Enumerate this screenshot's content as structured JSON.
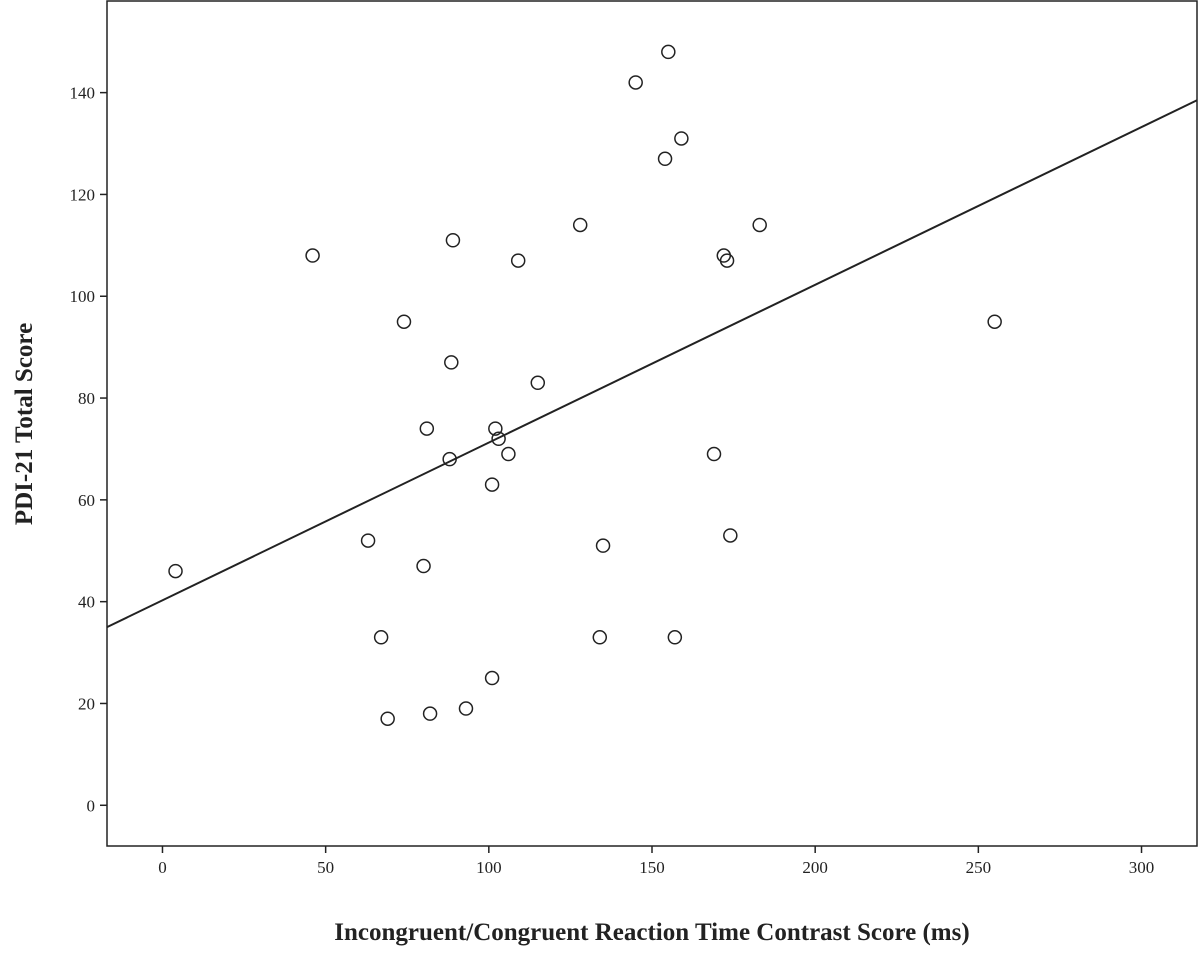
{
  "chart_data": {
    "type": "scatter",
    "title": "",
    "xlabel": "Incongruent/Congruent Reaction Time Contrast Score (ms)",
    "ylabel": "PDI-21 Total Score",
    "xlim": [
      -17,
      317
    ],
    "ylim": [
      -8,
      158
    ],
    "x_ticks": [
      0,
      50,
      100,
      150,
      200,
      250,
      300
    ],
    "y_ticks": [
      0,
      20,
      40,
      60,
      80,
      100,
      120,
      140
    ],
    "grid": false,
    "series": [
      {
        "values": [
          {
            "x": 4,
            "y": 46
          },
          {
            "x": 46,
            "y": 108
          },
          {
            "x": 63,
            "y": 52
          },
          {
            "x": 67,
            "y": 33
          },
          {
            "x": 69,
            "y": 17
          },
          {
            "x": 74,
            "y": 95
          },
          {
            "x": 80,
            "y": 47
          },
          {
            "x": 81,
            "y": 74
          },
          {
            "x": 82,
            "y": 18
          },
          {
            "x": 88,
            "y": 68
          },
          {
            "x": 88.5,
            "y": 87
          },
          {
            "x": 89,
            "y": 111
          },
          {
            "x": 93,
            "y": 19
          },
          {
            "x": 101,
            "y": 25
          },
          {
            "x": 101,
            "y": 63
          },
          {
            "x": 102,
            "y": 74
          },
          {
            "x": 103,
            "y": 72
          },
          {
            "x": 106,
            "y": 69
          },
          {
            "x": 109,
            "y": 107
          },
          {
            "x": 115,
            "y": 83
          },
          {
            "x": 128,
            "y": 114
          },
          {
            "x": 134,
            "y": 33
          },
          {
            "x": 135,
            "y": 51
          },
          {
            "x": 145,
            "y": 142
          },
          {
            "x": 154,
            "y": 127
          },
          {
            "x": 155,
            "y": 148
          },
          {
            "x": 157,
            "y": 33
          },
          {
            "x": 159,
            "y": 131
          },
          {
            "x": 169,
            "y": 69
          },
          {
            "x": 172,
            "y": 108
          },
          {
            "x": 173,
            "y": 107
          },
          {
            "x": 174,
            "y": 53
          },
          {
            "x": 183,
            "y": 114
          },
          {
            "x": 255,
            "y": 95
          }
        ]
      }
    ],
    "fit_line": {
      "x": [
        -17,
        317
      ],
      "y": [
        35,
        138.5
      ]
    },
    "colors": {
      "axis": "#222222",
      "marker": "#222222",
      "line": "#222222",
      "background": "#ffffff"
    }
  }
}
